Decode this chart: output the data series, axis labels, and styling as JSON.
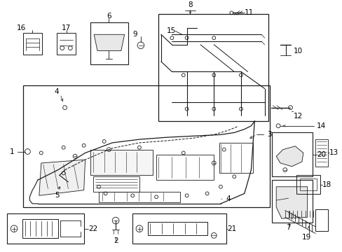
{
  "background_color": "#ffffff",
  "line_color": "#1a1a1a",
  "text_color": "#000000",
  "figsize": [
    4.89,
    3.6
  ],
  "dpi": 100,
  "label_fs": 7.5,
  "small_fs": 6.0
}
